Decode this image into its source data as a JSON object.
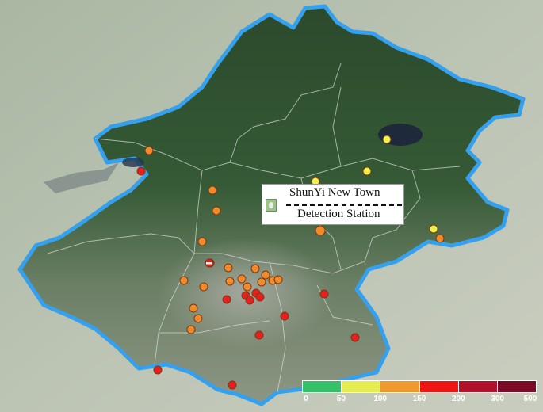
{
  "callout": {
    "line1": "ShunYi New Town",
    "line2": "Detection Station"
  },
  "legend": {
    "colors": [
      "#36c06a",
      "#e6ee4f",
      "#ee9a2f",
      "#ef1515",
      "#b0122c",
      "#7a0a26"
    ],
    "ticks": [
      "0",
      "50",
      "100",
      "150",
      "200",
      "300",
      "500"
    ]
  },
  "stations": [
    {
      "id": "s01",
      "color": "#f08a2a"
    },
    {
      "id": "s02",
      "color": "#e61f1f"
    },
    {
      "id": "s03",
      "color": "#f2f04b"
    },
    {
      "id": "s04",
      "color": "#f2f04b"
    },
    {
      "id": "s05",
      "color": "#f2f04b"
    },
    {
      "id": "s06",
      "color": "#f2f04b"
    },
    {
      "id": "s07",
      "color": "#f08a2a"
    },
    {
      "id": "s08",
      "color": "#f08a2a"
    },
    {
      "id": "s09",
      "color": "#f08a2a"
    },
    {
      "id": "s10",
      "color": "#f08a2a"
    },
    {
      "id": "s11",
      "color": "#f08a2a"
    },
    {
      "id": "s12",
      "color": "#e61f1f"
    },
    {
      "id": "s13",
      "color": "#f08a2a"
    },
    {
      "id": "s14",
      "color": "#f08a2a"
    },
    {
      "id": "s15",
      "color": "#f08a2a"
    },
    {
      "id": "s16",
      "color": "#f08a2a"
    },
    {
      "id": "s17",
      "color": "#f08a2a"
    },
    {
      "id": "s18",
      "color": "#f08a2a"
    },
    {
      "id": "s19",
      "color": "#f08a2a"
    },
    {
      "id": "s20",
      "color": "#f08a2a"
    },
    {
      "id": "s21",
      "color": "#e61f1f"
    },
    {
      "id": "s22",
      "color": "#e61f1f"
    },
    {
      "id": "s23",
      "color": "#e61f1f"
    },
    {
      "id": "s24",
      "color": "#e61f1f"
    },
    {
      "id": "s25",
      "color": "#e61f1f"
    },
    {
      "id": "s26",
      "color": "#f08a2a"
    },
    {
      "id": "s27",
      "color": "#f08a2a"
    },
    {
      "id": "s28",
      "color": "#e61f1f"
    },
    {
      "id": "s29",
      "color": "#e61f1f"
    },
    {
      "id": "s30",
      "color": "#e61f1f"
    },
    {
      "id": "s31",
      "color": "#e61f1f"
    },
    {
      "id": "s32",
      "color": "#e61f1f"
    },
    {
      "id": "s33",
      "color": "#e61f1f"
    },
    {
      "id": "s34",
      "color": "#f08a2a"
    },
    {
      "id": "s35",
      "color": "#f08a2a"
    },
    {
      "id": "s36",
      "color": "#f08a2a"
    },
    {
      "id": "s37",
      "color": "#f08a2a"
    }
  ]
}
